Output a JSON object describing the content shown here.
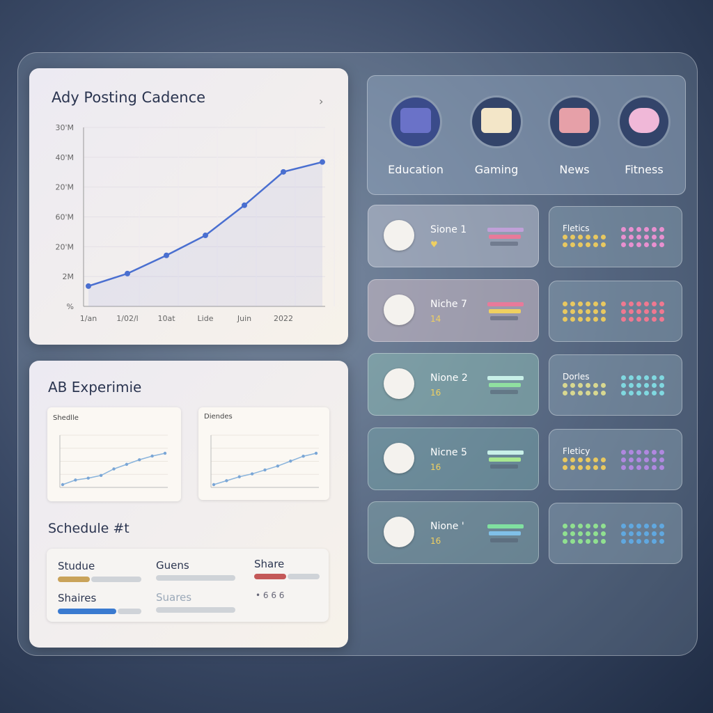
{
  "posting_chart": {
    "type": "line",
    "title": "Ady Posting Cadence",
    "categories": [
      "1/an",
      "1/02/l",
      "10at",
      "Lide",
      "Juin",
      "2022",
      null
    ],
    "values": [
      0.68,
      1.1,
      1.71,
      2.38,
      3.39,
      4.51,
      4.84
    ],
    "color": "#4a6fd0",
    "ylim": [
      0,
      6
    ],
    "yticks": [
      {
        "value": 0,
        "label": "%"
      },
      {
        "value": 1,
        "label": "2M"
      },
      {
        "value": 2,
        "label": "20'M"
      },
      {
        "value": 3,
        "label": "60'M"
      },
      {
        "value": 4,
        "label": "20'M"
      },
      {
        "value": 5,
        "label": "40'M"
      },
      {
        "value": 6,
        "label": "30'M"
      }
    ],
    "grid": true
  },
  "ab": {
    "title": "AB Experimie",
    "panels": [
      {
        "title": "Shedlle",
        "values": [
          1,
          2,
          2.4,
          3,
          4.4,
          5.4,
          6.4,
          7.2,
          7.8
        ]
      },
      {
        "title": "Diendes",
        "values": [
          1,
          1.8,
          2.6,
          3.2,
          4,
          4.8,
          5.8,
          6.8,
          7.4
        ]
      }
    ]
  },
  "schedule": {
    "title": "Schedule #t",
    "items": [
      "Studue",
      "Guens",
      "Share",
      "Shaires",
      "Suares"
    ],
    "footer": "• 6 6 6"
  },
  "categories": [
    "Education",
    "Gaming",
    "News",
    "Fitness"
  ],
  "niches": [
    {
      "label": "Sione 1",
      "sub": "♥",
      "side": "Fletics"
    },
    {
      "label": "Niche 7",
      "sub": "14"
    },
    {
      "label": "Nione 2",
      "sub": "16",
      "side": "Dorles"
    },
    {
      "label": "Nicne 5",
      "sub": "16",
      "side": "Fleticy"
    },
    {
      "label": "Nione '",
      "sub": "16"
    }
  ]
}
